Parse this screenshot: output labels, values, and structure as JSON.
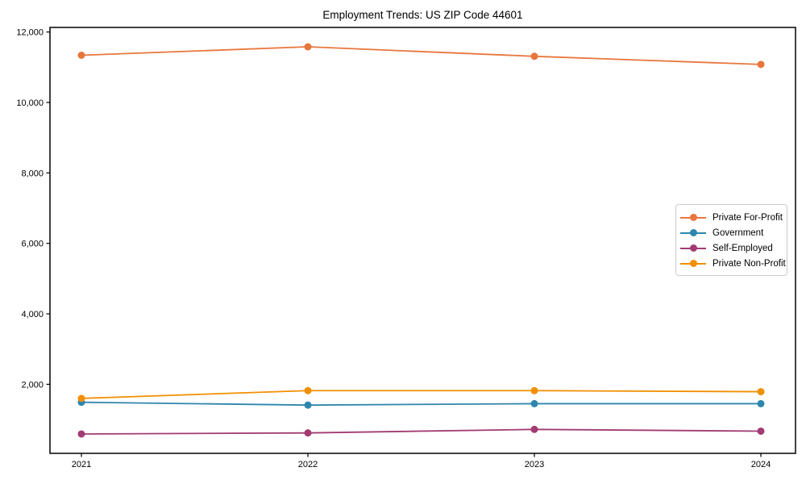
{
  "figure": {
    "title": "Employment Trends: US ZIP Code 44601"
  },
  "chart_data": {
    "type": "line",
    "title": "Employment Trends: US ZIP Code 44601",
    "categories": [
      "2021",
      "2022",
      "2023",
      "2024"
    ],
    "series": [
      {
        "name": "Private For-Profit",
        "color": "#E8763C",
        "values": [
          11340,
          11580,
          11310,
          11080
        ]
      },
      {
        "name": "Government",
        "color": "#2E86AB",
        "values": [
          1490,
          1410,
          1450,
          1450
        ]
      },
      {
        "name": "Self-Employed",
        "color": "#A23B72",
        "values": [
          590,
          620,
          720,
          670
        ]
      },
      {
        "name": "Private Non-Profit",
        "color": "#F18F01",
        "values": [
          1600,
          1820,
          1820,
          1790
        ]
      }
    ],
    "xlabel": "",
    "ylabel": "",
    "yticks": {
      "values": [
        2000,
        4000,
        6000,
        8000,
        10000,
        12000
      ],
      "labels": [
        "2,000",
        "4,000",
        "6,000",
        "8,000",
        "10,000",
        "12,000"
      ]
    },
    "ylim": [
      40,
      12130
    ],
    "grid": false,
    "legend_position": "center right",
    "marker": "circle",
    "line_width": 1.8,
    "marker_radius": 4.5,
    "axis_color": "#000000"
  }
}
